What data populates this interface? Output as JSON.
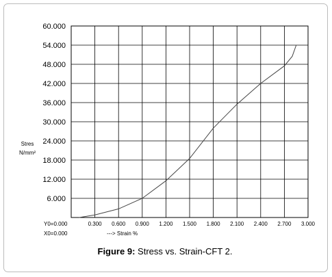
{
  "chart_data": {
    "type": "line",
    "y_label": [
      "Stres",
      "N/mm²"
    ],
    "x_label": "---> Strain %",
    "annotations": [
      "Y0=0.000",
      "X0=0.000"
    ],
    "caption_label": "Figure 9:",
    "caption_text": "Stress vs. Strain-CFT 2.",
    "xlim": [
      0,
      3
    ],
    "xticks": [
      {
        "value": 0.3,
        "label": "0.300"
      },
      {
        "value": 0.6,
        "label": "0.600"
      },
      {
        "value": 0.9,
        "label": "0.900"
      },
      {
        "value": 1.2,
        "label": "1.200"
      },
      {
        "value": 1.5,
        "label": "1.500"
      },
      {
        "value": 1.8,
        "label": "1.800"
      },
      {
        "value": 2.1,
        "label": "2.100"
      },
      {
        "value": 2.4,
        "label": "2.400"
      },
      {
        "value": 2.7,
        "label": "2.700"
      },
      {
        "value": 3.0,
        "label": "3.000"
      }
    ],
    "ylim": [
      0,
      60
    ],
    "yticks": [
      {
        "value": 6,
        "label": "6.000"
      },
      {
        "value": 12,
        "label": "12.000"
      },
      {
        "value": 18,
        "label": "18.000"
      },
      {
        "value": 24,
        "label": "24.000"
      },
      {
        "value": 30,
        "label": "30.000"
      },
      {
        "value": 36,
        "label": "36.000"
      },
      {
        "value": 42,
        "label": "42.000"
      },
      {
        "value": 48,
        "label": "48.000"
      },
      {
        "value": 54,
        "label": "54.000"
      },
      {
        "value": 60,
        "label": "60.000"
      }
    ],
    "grid": true,
    "color": "#444444",
    "x": [
      0.1,
      0.3,
      0.6,
      0.9,
      1.2,
      1.5,
      1.8,
      2.1,
      2.4,
      2.7,
      2.8,
      2.85
    ],
    "values": [
      0,
      0.8,
      2.7,
      6,
      11.5,
      18.5,
      28,
      35.5,
      42,
      47.5,
      50.5,
      54
    ]
  }
}
